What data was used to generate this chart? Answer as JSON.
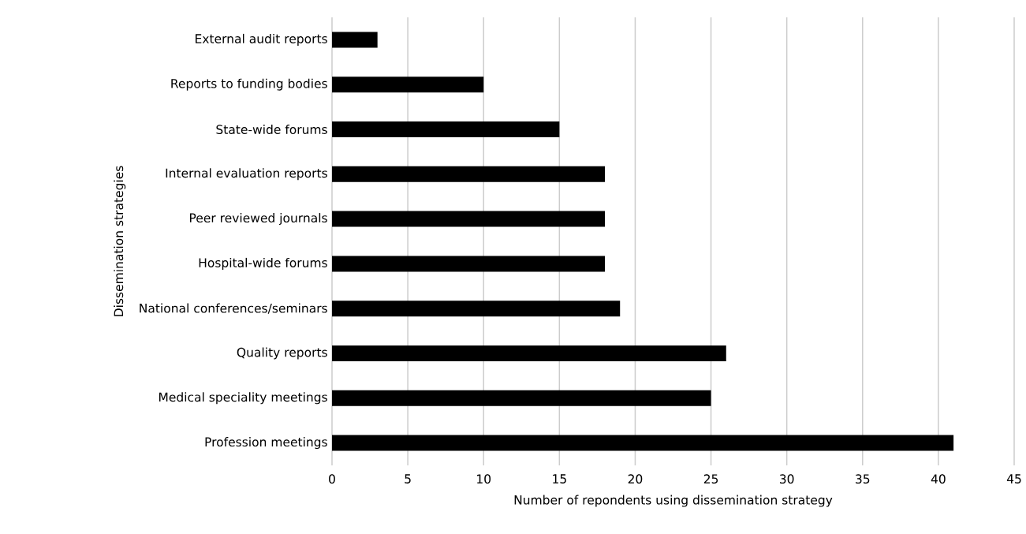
{
  "chart_data": {
    "type": "bar",
    "orientation": "horizontal",
    "xlabel": "Number of repondents using dissemination strategy",
    "ylabel": "Dissemination strategies",
    "categories": [
      "External audit reports",
      "Reports to funding bodies",
      "State-wide forums",
      "Internal evaluation reports",
      "Peer reviewed journals",
      "Hospital-wide forums",
      "National conferences/seminars",
      "Quality reports",
      "Medical speciality meetings",
      "Profession meetings"
    ],
    "values": [
      3,
      10,
      15,
      18,
      18,
      18,
      19,
      26,
      25,
      41
    ],
    "color": "#000000",
    "xlim": [
      0,
      45
    ],
    "xticks": [
      0,
      5,
      10,
      15,
      20,
      25,
      30,
      35,
      40,
      45
    ],
    "grid": "x"
  }
}
